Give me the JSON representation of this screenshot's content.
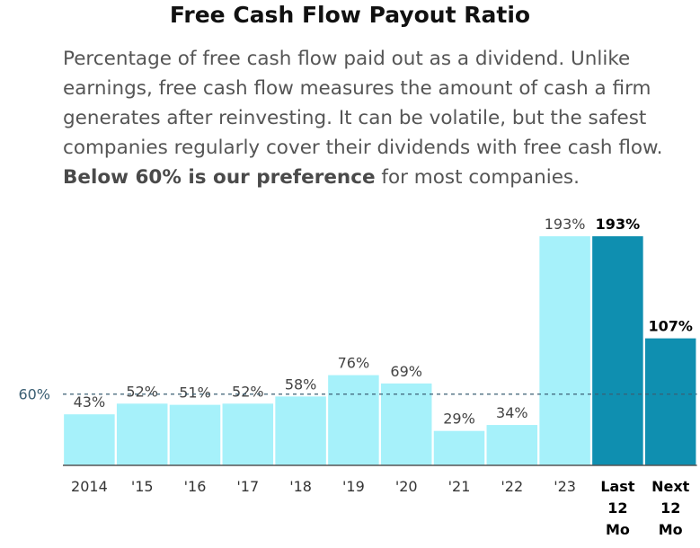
{
  "title": "Free Cash Flow Payout Ratio",
  "description": {
    "text": "Percentage of free cash flow paid out as a dividend. Unlike earnings, free cash flow measures the amount of cash a firm generates after reinvesting. It can be volatile, but the safest companies regularly cover their dividends with free cash flow.",
    "bold": "Below 60% is our preference",
    "tail": "for most companies."
  },
  "colors": {
    "light": "#a6f1fa",
    "dark": "#0f8fb0",
    "refline": "#3b5f73"
  },
  "chart_data": {
    "type": "bar",
    "categories": [
      "2014",
      "'15",
      "'16",
      "'17",
      "'18",
      "'19",
      "'20",
      "'21",
      "'22",
      "'23",
      "Last 12 Mo",
      "Next 12 Mo"
    ],
    "values": [
      43,
      52,
      51,
      52,
      58,
      76,
      69,
      29,
      34,
      193,
      193,
      107
    ],
    "value_labels": [
      "43%",
      "52%",
      "51%",
      "52%",
      "58%",
      "76%",
      "69%",
      "29%",
      "34%",
      "193%",
      "193%",
      "107%"
    ],
    "highlight": [
      false,
      false,
      false,
      false,
      false,
      false,
      false,
      false,
      false,
      false,
      true,
      true
    ],
    "reference_line": {
      "value": 60,
      "label": "60%"
    },
    "ylim": [
      0,
      193
    ],
    "title": "Free Cash Flow Payout Ratio",
    "xlabel": "",
    "ylabel": ""
  }
}
